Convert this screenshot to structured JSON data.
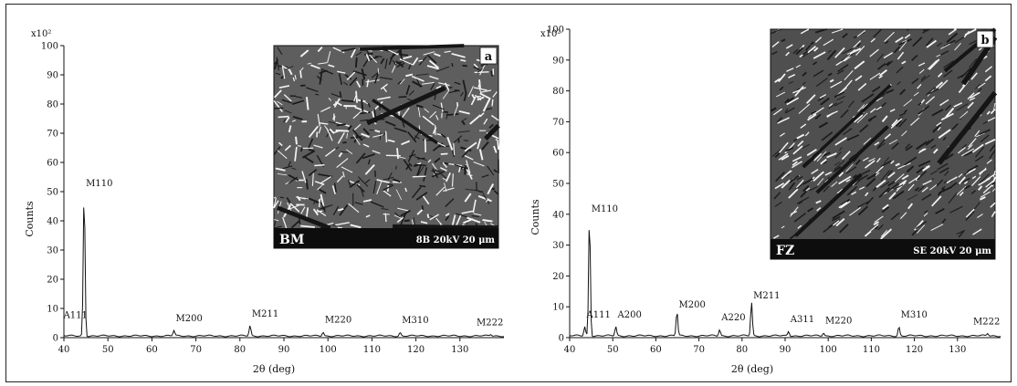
{
  "chart_data": [
    {
      "type": "line",
      "panel_label": "a",
      "xlabel": "2θ (deg)",
      "ylabel": "Counts",
      "y_multiplier_label": "x10²",
      "xlim": [
        40,
        140
      ],
      "ylim": [
        0,
        100
      ],
      "x_ticks": [
        40,
        50,
        60,
        70,
        80,
        90,
        100,
        110,
        120,
        130
      ],
      "y_ticks": [
        0,
        10,
        20,
        30,
        40,
        50,
        60,
        70,
        80,
        90,
        100
      ],
      "y_tick_labels": [
        "0",
        "10",
        "20",
        "30",
        "40",
        "50",
        "60",
        "70",
        "80",
        "90",
        "100"
      ],
      "series": [
        {
          "peaks": [
            {
              "x": 39.5,
              "y": 3.0,
              "label": "A111"
            },
            {
              "x": 44.6,
              "y": 50.0,
              "label": "M110"
            },
            {
              "x": 65.0,
              "y": 1.8,
              "label": "M200"
            },
            {
              "x": 82.3,
              "y": 3.5,
              "label": "M211"
            },
            {
              "x": 98.9,
              "y": 1.4,
              "label": "M220"
            },
            {
              "x": 116.4,
              "y": 1.2,
              "label": "M310"
            },
            {
              "x": 137.0,
              "y": 0.5,
              "label": "M222"
            }
          ]
        }
      ],
      "inset": {
        "label": "BM",
        "scale_text": "8B  20kV  20 μm"
      }
    },
    {
      "type": "line",
      "panel_label": "b",
      "xlabel": "2θ (deg)",
      "ylabel": "Counts",
      "y_multiplier_label": "x10²",
      "xlim": [
        40,
        140
      ],
      "ylim": [
        0,
        100
      ],
      "x_ticks": [
        40,
        50,
        60,
        70,
        80,
        90,
        100,
        110,
        120,
        130
      ],
      "y_ticks": [
        0,
        10,
        20,
        30,
        40,
        50,
        60,
        70,
        80,
        90,
        100
      ],
      "y_tick_labels": [
        "0",
        "10",
        "20",
        "30",
        "40",
        "50",
        "60",
        "70",
        "80",
        "90",
        "100"
      ],
      "series": [
        {
          "peaks": [
            {
              "x": 43.5,
              "y": 3.0,
              "label": "A111"
            },
            {
              "x": 44.6,
              "y": 39.0,
              "label": "M110"
            },
            {
              "x": 50.7,
              "y": 3.0,
              "label": "A200"
            },
            {
              "x": 64.9,
              "y": 8.0,
              "label": "M200"
            },
            {
              "x": 74.8,
              "y": 2.0,
              "label": "A220"
            },
            {
              "x": 82.2,
              "y": 11.0,
              "label": "M211"
            },
            {
              "x": 90.8,
              "y": 1.5,
              "label": "A311"
            },
            {
              "x": 98.9,
              "y": 1.0,
              "label": "M220"
            },
            {
              "x": 116.4,
              "y": 3.0,
              "label": "M310"
            },
            {
              "x": 137.0,
              "y": 0.8,
              "label": "M222"
            }
          ]
        }
      ],
      "inset": {
        "label": "FZ",
        "scale_text": "SE  20kV  20 μm"
      }
    }
  ]
}
